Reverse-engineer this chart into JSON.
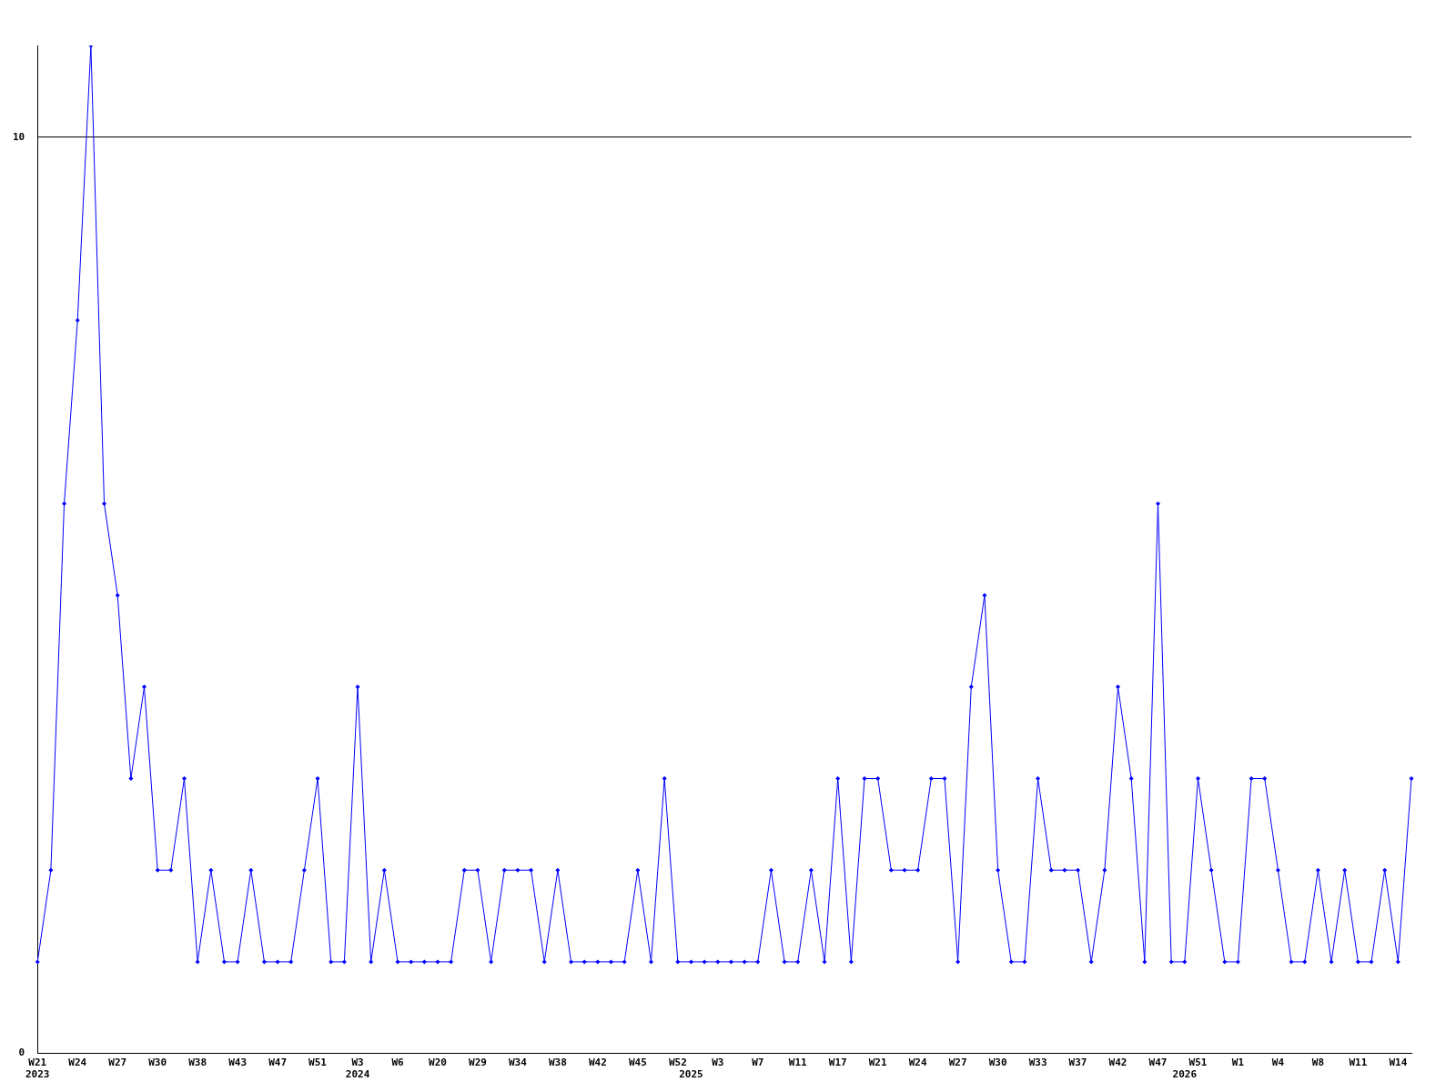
{
  "chart_data": {
    "type": "line",
    "categories": [
      "W21\n2023",
      null,
      null,
      "W24",
      null,
      null,
      "W27",
      null,
      null,
      "W30",
      null,
      null,
      "W38",
      null,
      null,
      "W43",
      null,
      null,
      "W47",
      null,
      null,
      "W51",
      null,
      null,
      "W3\n2024",
      null,
      null,
      "W6",
      null,
      null,
      "W20",
      null,
      null,
      "W29",
      null,
      null,
      "W34",
      null,
      null,
      "W38",
      null,
      null,
      "W42",
      null,
      null,
      "W45",
      null,
      null,
      "W52",
      "\n2025",
      null,
      "W3",
      null,
      null,
      "W7",
      null,
      null,
      "W11",
      null,
      null,
      "W17",
      null,
      null,
      "W21",
      null,
      null,
      "W24",
      null,
      null,
      "W27",
      null,
      null,
      "W30",
      null,
      null,
      "W33",
      null,
      null,
      "W37",
      null,
      null,
      "W42",
      null,
      null,
      "W47",
      null,
      "\n2026",
      "W51",
      null,
      null,
      "W1",
      null,
      null,
      "W4",
      null,
      null,
      "W8",
      null,
      null,
      "W11",
      null,
      null,
      "W14",
      null
    ],
    "series": [
      {
        "color": "#0000ff",
        "values": [
          1,
          2,
          6,
          8,
          11,
          6,
          5,
          3,
          4,
          2,
          2,
          3,
          1,
          2,
          1,
          1,
          2,
          1,
          1,
          1,
          2,
          3,
          1,
          1,
          4,
          1,
          2,
          1,
          1,
          1,
          1,
          1,
          2,
          2,
          1,
          2,
          2,
          2,
          1,
          2,
          1,
          1,
          1,
          1,
          1,
          2,
          1,
          3,
          1,
          1,
          1,
          1,
          1,
          1,
          1,
          2,
          1,
          1,
          2,
          1,
          3,
          1,
          3,
          3,
          2,
          2,
          2,
          3,
          3,
          1,
          4,
          5,
          2,
          1,
          1,
          3,
          2,
          2,
          2,
          1,
          2,
          4,
          3,
          1,
          6,
          1,
          1,
          3,
          2,
          1,
          1,
          3,
          3,
          2,
          1,
          1,
          2,
          1,
          2,
          1,
          1,
          2,
          1,
          3
        ]
      }
    ],
    "ylim": [
      0,
      11
    ],
    "yticks": [
      0,
      10
    ],
    "grid": "y",
    "legend": false,
    "marker": "diamond",
    "line_style": "solid"
  }
}
